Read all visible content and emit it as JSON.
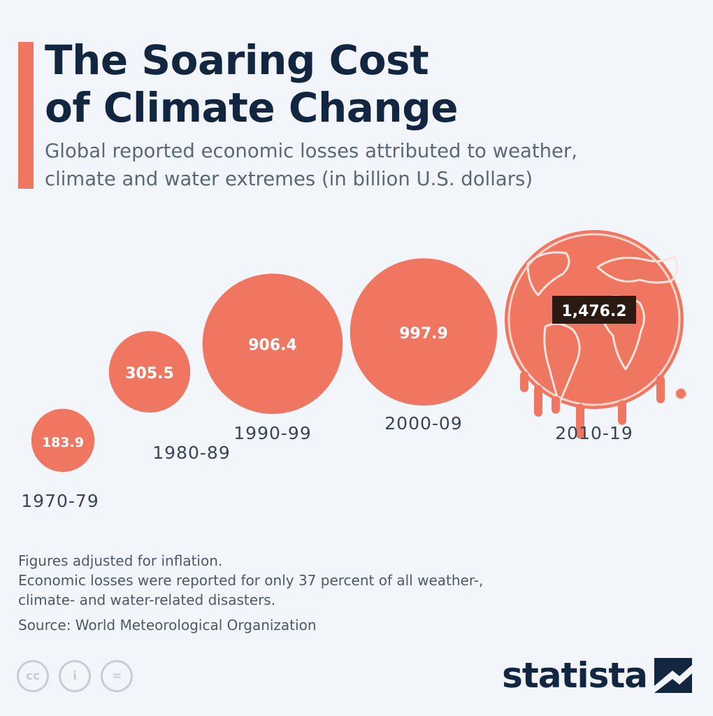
{
  "header": {
    "title_lines": [
      "The Soaring Cost",
      "of Climate Change"
    ],
    "subtitle_lines": [
      "Global reported economic losses attributed to weather,",
      "climate and water extremes (in billion U.S. dollars)"
    ]
  },
  "chart_data": {
    "type": "bubble",
    "title": "The Soaring Cost of Climate Change",
    "subtitle": "Global reported economic losses attributed to weather, climate and water extremes (in billion U.S. dollars)",
    "categories": [
      "1970-79",
      "1980-89",
      "1990-99",
      "2000-09",
      "2010-19"
    ],
    "values": [
      183.9,
      305.5,
      906.4,
      997.9,
      1476.2
    ],
    "value_labels": [
      "183.9",
      "305.5",
      "906.4",
      "997.9",
      "1,476.2"
    ],
    "color": "#ef7762",
    "highlight_label_bg": "#2b1a12"
  },
  "footer": {
    "notes": [
      "Figures adjusted for inflation.",
      "Economic losses were reported for only 37 percent of all weather-,",
      "climate- and water-related disasters."
    ],
    "source": "Source: World Meteorological Organization"
  },
  "branding": {
    "logo_text": "statista",
    "license_icons": [
      "cc-icon",
      "by-icon",
      "nd-icon"
    ],
    "license_glyphs": [
      "cc",
      "i",
      "="
    ]
  }
}
